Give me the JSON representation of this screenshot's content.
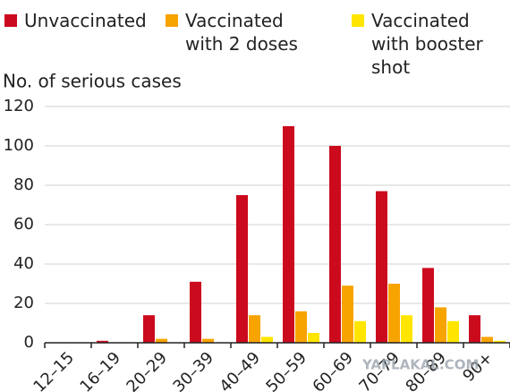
{
  "chart_data": {
    "type": "grouped-bar",
    "y_label": "No. of serious cases",
    "categories": [
      "12–15",
      "16–19",
      "20–29",
      "30–39",
      "40–49",
      "50–59",
      "60–69",
      "70–79",
      "80–89",
      "90+"
    ],
    "series": [
      {
        "name": "Unvaccinated",
        "color": "#cc0a1e",
        "values": [
          0,
          1,
          14,
          31,
          75,
          110,
          100,
          77,
          38,
          14
        ]
      },
      {
        "name": "Vaccinated with 2 doses",
        "color": "#f7a300",
        "values": [
          0,
          0,
          2,
          2,
          14,
          16,
          29,
          30,
          18,
          3
        ]
      },
      {
        "name": "Vaccinated with booster shot",
        "color": "#ffe500",
        "values": [
          0,
          0,
          0,
          0,
          3,
          5,
          11,
          14,
          11,
          1
        ]
      }
    ],
    "ylim": [
      0,
      120
    ],
    "yticks": [
      0,
      20,
      40,
      60,
      80,
      100,
      120
    ],
    "grid": true,
    "watermark": "YAPLAKAL.COM"
  }
}
